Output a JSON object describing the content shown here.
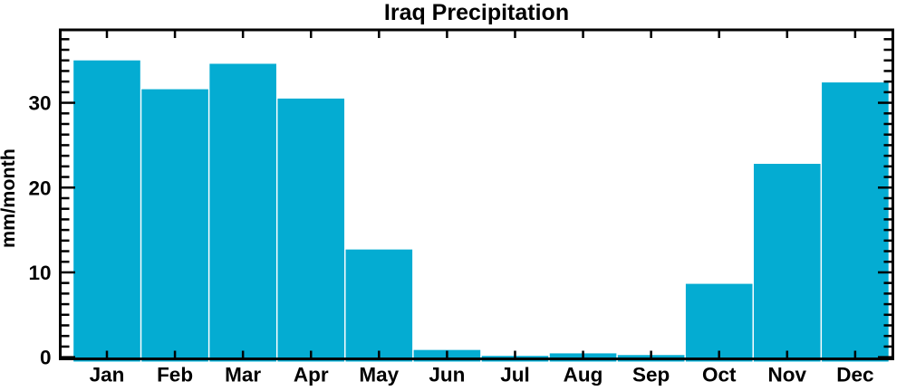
{
  "chart_data": {
    "type": "bar",
    "title": "Iraq Precipitation",
    "ylabel": "mm/month",
    "xlabel": "",
    "categories": [
      "Jan",
      "Feb",
      "Mar",
      "Apr",
      "May",
      "Jun",
      "Jul",
      "Aug",
      "Sep",
      "Oct",
      "Nov",
      "Dec"
    ],
    "values": [
      35.0,
      31.6,
      34.6,
      30.5,
      12.7,
      0.85,
      0.15,
      0.45,
      0.25,
      8.65,
      22.8,
      32.4
    ],
    "y_ticks": [
      0,
      10,
      20,
      30
    ],
    "y_tick_labels": [
      "0",
      "10",
      "20",
      "30"
    ],
    "y_minor_step": 1.25,
    "ylim": [
      -0.2,
      38.6
    ],
    "grid": false,
    "legend": "none",
    "bar_color": "#04ACD2",
    "bar_separator_color": "#FFFFFF",
    "axis_color": "#000000",
    "text_color": "#000000",
    "background_color": "#FFFFFF"
  }
}
